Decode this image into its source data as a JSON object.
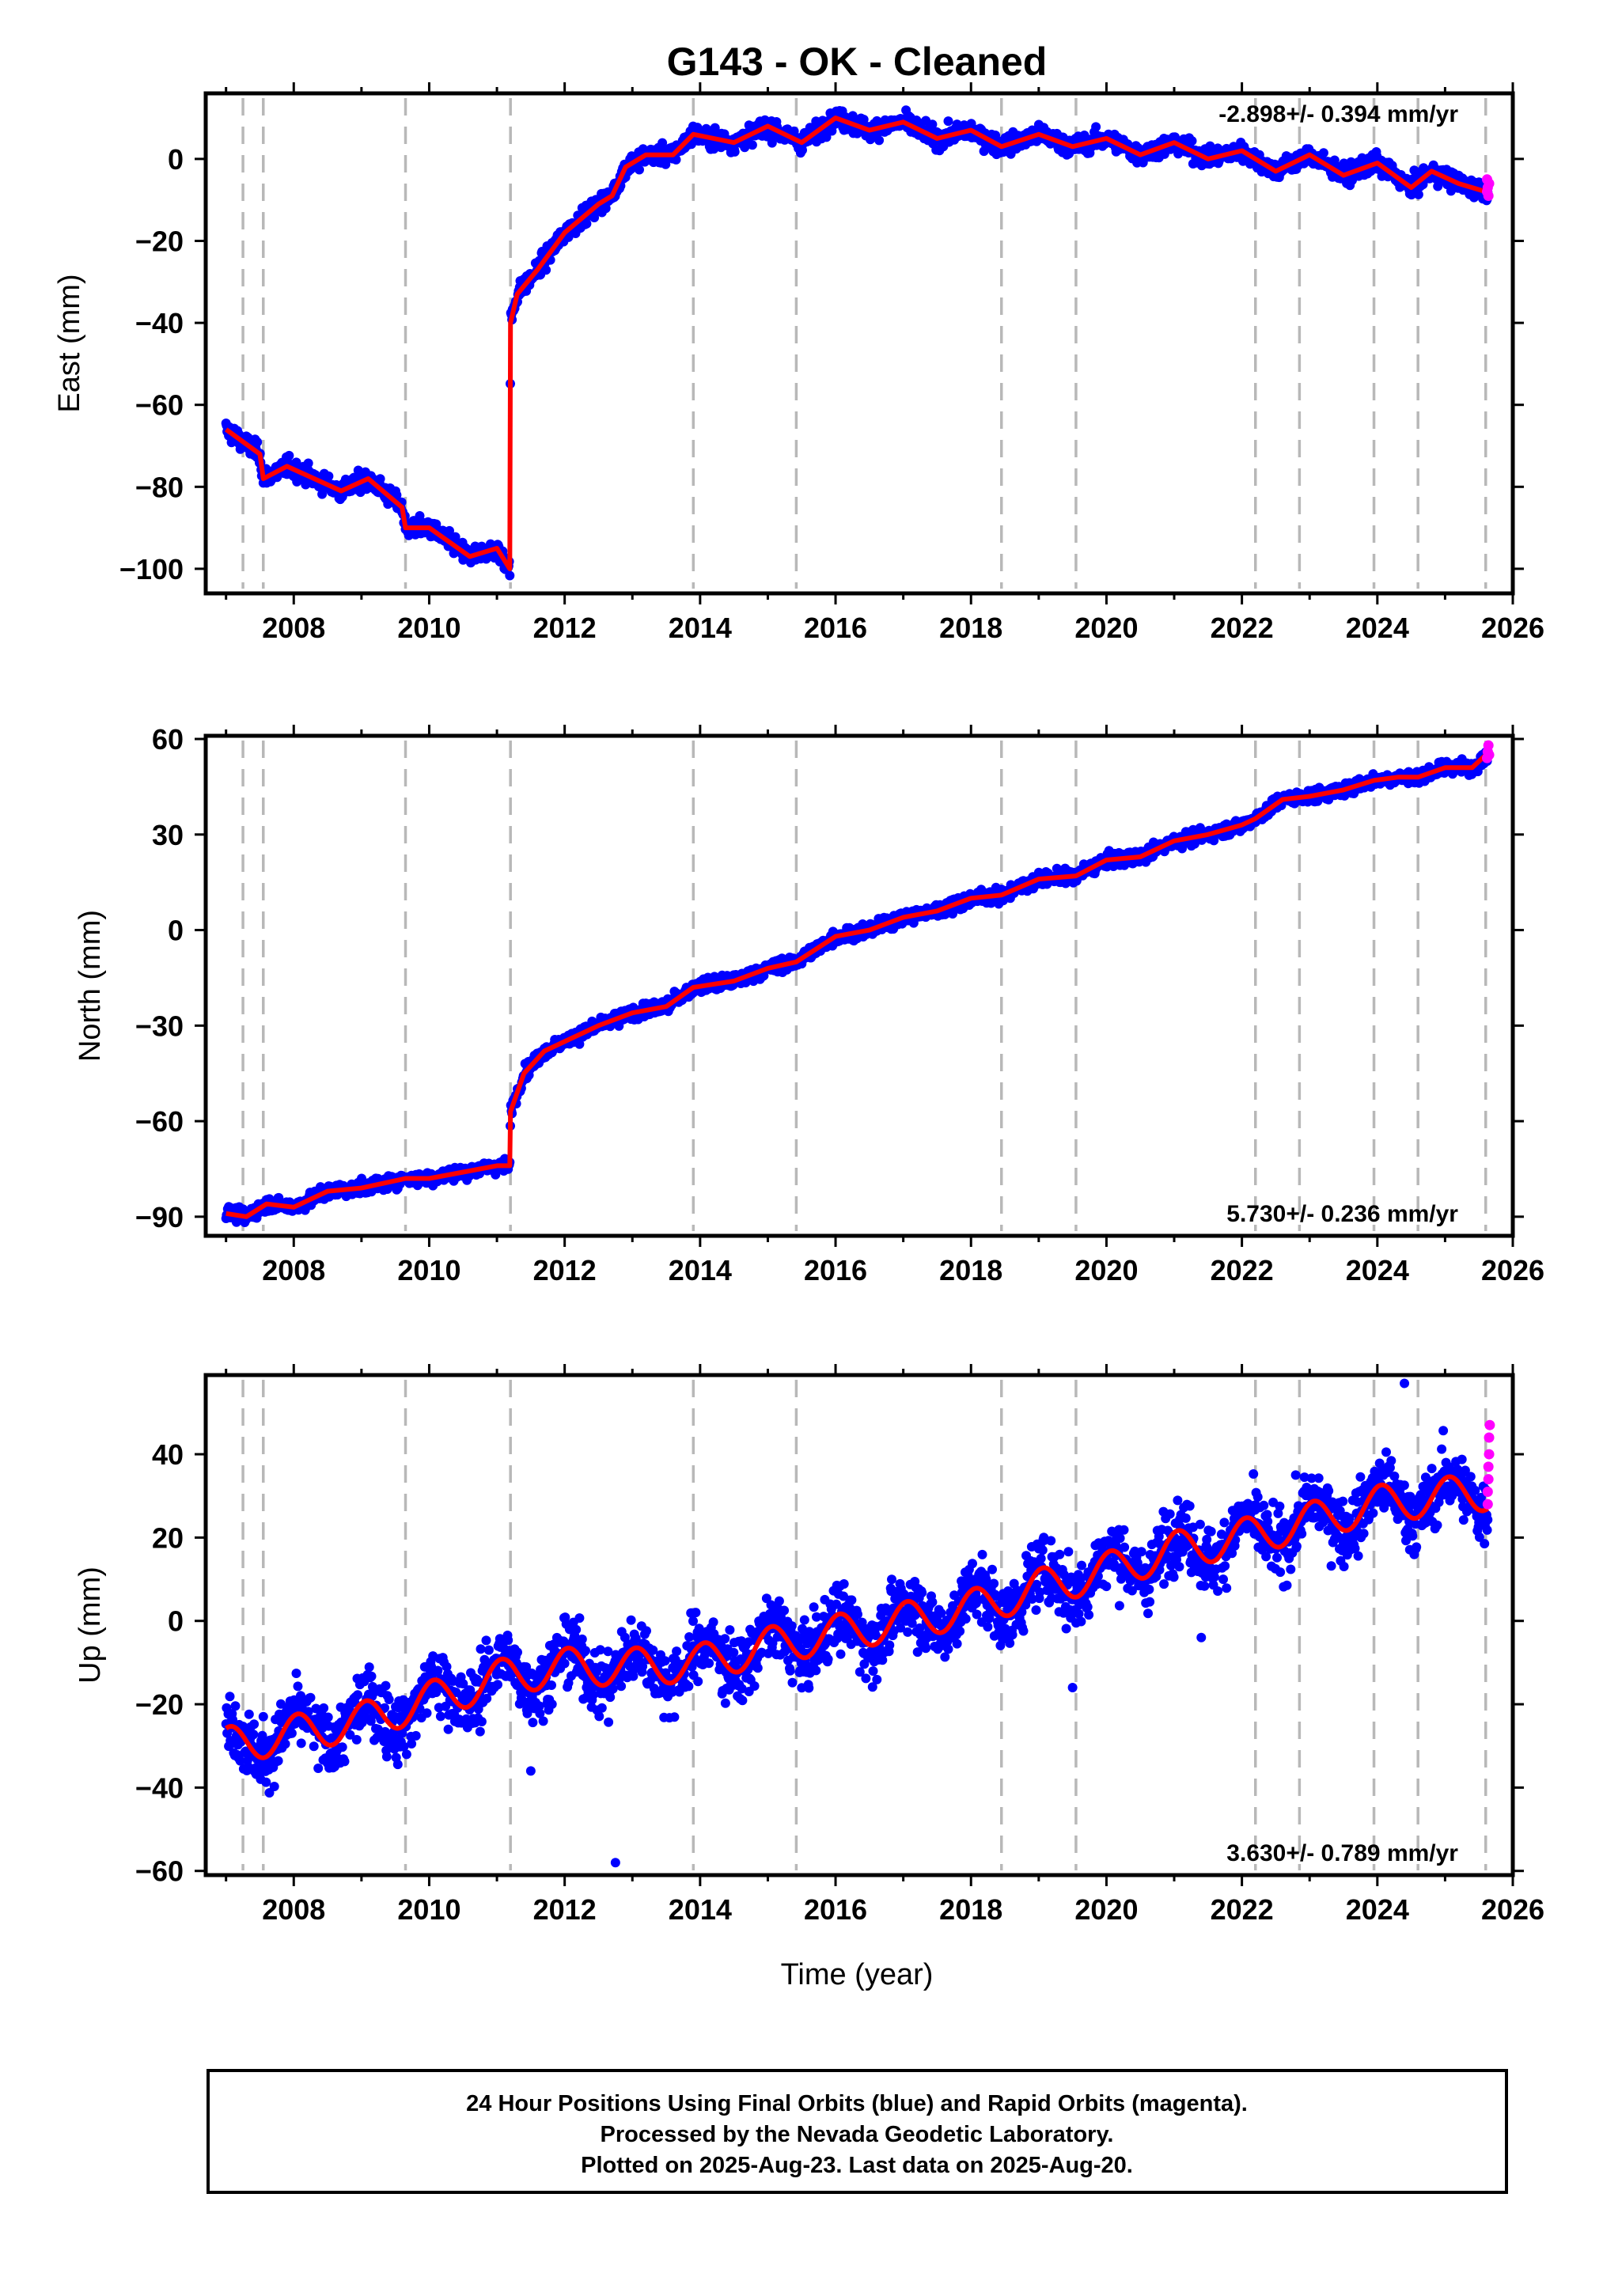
{
  "title": "G143  - OK - Cleaned",
  "footer": {
    "lines": [
      "24 Hour Positions Using Final Orbits (blue) and Rapid Orbits (magenta).",
      "Processed by the Nevada Geodetic Laboratory.",
      "Plotted on 2025-Aug-23. Last data on 2025-Aug-20."
    ]
  },
  "colors": {
    "final_orbits": "#0000ff",
    "rapid_orbits": "#ff00ff",
    "model": "#ff0000",
    "event_lines": "#b8b8b8"
  },
  "chart_data": [
    {
      "type": "scatter",
      "ylabel": "East (mm)",
      "xlim": [
        2006.7,
        2026.0
      ],
      "ylim": [
        -106,
        16
      ],
      "yticks": [
        0,
        -20,
        -40,
        -60,
        -80,
        -100
      ],
      "xticks": [
        2008,
        2010,
        2012,
        2014,
        2016,
        2018,
        2020,
        2022,
        2024,
        2026
      ],
      "rate_label": "-2.898+/- 0.394 mm/yr",
      "rate_position": "top-right",
      "event_lines": [
        2007.25,
        2007.55,
        2009.65,
        2011.2,
        2013.9,
        2015.42,
        2018.45,
        2019.55,
        2022.2,
        2022.85,
        2023.95,
        2024.6,
        2025.6
      ],
      "data_range": [
        2007.0,
        2025.63
      ],
      "series": [
        {
          "name": "Final Orbits (blue)",
          "model": [
            [
              2007.0,
              -66
            ],
            [
              2007.5,
              -72
            ],
            [
              2007.55,
              -78
            ],
            [
              2007.9,
              -75
            ],
            [
              2008.7,
              -81
            ],
            [
              2009.1,
              -78
            ],
            [
              2009.6,
              -85
            ],
            [
              2009.65,
              -90
            ],
            [
              2010.0,
              -90
            ],
            [
              2010.6,
              -97
            ],
            [
              2011.0,
              -95
            ],
            [
              2011.19,
              -100
            ],
            [
              2011.2,
              -40
            ],
            [
              2011.3,
              -33
            ],
            [
              2011.6,
              -27
            ],
            [
              2012.0,
              -18
            ],
            [
              2012.5,
              -11
            ],
            [
              2012.7,
              -9
            ],
            [
              2012.9,
              -2
            ],
            [
              2013.2,
              1
            ],
            [
              2013.6,
              1
            ],
            [
              2013.9,
              6
            ],
            [
              2014.5,
              4
            ],
            [
              2015.0,
              8
            ],
            [
              2015.5,
              4
            ],
            [
              2016.0,
              10
            ],
            [
              2016.5,
              7
            ],
            [
              2017.0,
              9
            ],
            [
              2017.5,
              5
            ],
            [
              2018.0,
              7
            ],
            [
              2018.45,
              3
            ],
            [
              2019.0,
              6
            ],
            [
              2019.5,
              3
            ],
            [
              2020.0,
              5
            ],
            [
              2020.5,
              1
            ],
            [
              2021.0,
              4
            ],
            [
              2021.5,
              0
            ],
            [
              2022.0,
              2
            ],
            [
              2022.5,
              -3
            ],
            [
              2023.0,
              1
            ],
            [
              2023.5,
              -4
            ],
            [
              2024.0,
              -1
            ],
            [
              2024.5,
              -7
            ],
            [
              2024.8,
              -3
            ],
            [
              2025.2,
              -6
            ],
            [
              2025.6,
              -8
            ]
          ],
          "noise": 1.6
        },
        {
          "name": "Rapid Orbits (magenta)",
          "points": [
            [
              2025.62,
              -5
            ],
            [
              2025.63,
              -7
            ],
            [
              2025.64,
              -9
            ],
            [
              2025.65,
              -6
            ],
            [
              2025.62,
              -8
            ]
          ]
        }
      ]
    },
    {
      "type": "scatter",
      "ylabel": "North (mm)",
      "xlim": [
        2006.7,
        2026.0
      ],
      "ylim": [
        -96,
        61
      ],
      "yticks": [
        60,
        30,
        0,
        -30,
        -60,
        -90
      ],
      "xticks": [
        2008,
        2010,
        2012,
        2014,
        2016,
        2018,
        2020,
        2022,
        2024,
        2026
      ],
      "rate_label": "5.730+/- 0.236 mm/yr",
      "rate_position": "bottom-right",
      "event_lines": [
        2007.25,
        2007.55,
        2009.65,
        2011.2,
        2013.9,
        2015.42,
        2018.45,
        2019.55,
        2022.2,
        2022.85,
        2023.95,
        2024.6,
        2025.6
      ],
      "data_range": [
        2007.0,
        2025.63
      ],
      "series": [
        {
          "name": "Final Orbits (blue)",
          "model": [
            [
              2007.0,
              -89
            ],
            [
              2007.3,
              -90
            ],
            [
              2007.6,
              -86
            ],
            [
              2008.0,
              -87
            ],
            [
              2008.5,
              -82
            ],
            [
              2009.0,
              -81
            ],
            [
              2009.65,
              -78
            ],
            [
              2010.0,
              -78
            ],
            [
              2010.5,
              -76
            ],
            [
              2011.0,
              -74
            ],
            [
              2011.19,
              -74
            ],
            [
              2011.2,
              -57
            ],
            [
              2011.4,
              -45
            ],
            [
              2011.7,
              -38
            ],
            [
              2012.0,
              -35
            ],
            [
              2012.5,
              -30
            ],
            [
              2013.0,
              -26
            ],
            [
              2013.5,
              -24
            ],
            [
              2013.9,
              -18
            ],
            [
              2014.5,
              -16
            ],
            [
              2015.0,
              -12
            ],
            [
              2015.42,
              -10
            ],
            [
              2016.0,
              -2
            ],
            [
              2016.5,
              0
            ],
            [
              2017.0,
              4
            ],
            [
              2017.5,
              6
            ],
            [
              2018.0,
              10
            ],
            [
              2018.45,
              11
            ],
            [
              2019.0,
              16
            ],
            [
              2019.55,
              17
            ],
            [
              2020.0,
              22
            ],
            [
              2020.5,
              23
            ],
            [
              2021.0,
              28
            ],
            [
              2021.5,
              30
            ],
            [
              2022.0,
              33
            ],
            [
              2022.2,
              35
            ],
            [
              2022.6,
              41
            ],
            [
              2023.0,
              42
            ],
            [
              2023.5,
              44
            ],
            [
              2023.95,
              47
            ],
            [
              2024.3,
              48
            ],
            [
              2024.6,
              48
            ],
            [
              2025.0,
              51
            ],
            [
              2025.4,
              51
            ],
            [
              2025.6,
              55
            ]
          ],
          "noise": 1.5
        },
        {
          "name": "Rapid Orbits (magenta)",
          "points": [
            [
              2025.62,
              54
            ],
            [
              2025.63,
              56
            ],
            [
              2025.64,
              58
            ],
            [
              2025.65,
              55
            ]
          ]
        }
      ]
    },
    {
      "type": "scatter",
      "ylabel": "Up (mm)",
      "xlabel": "Time (year)",
      "xlim": [
        2006.7,
        2026.0
      ],
      "ylim": [
        -61,
        59
      ],
      "yticks": [
        40,
        20,
        0,
        -20,
        -40,
        -60
      ],
      "xticks": [
        2008,
        2010,
        2012,
        2014,
        2016,
        2018,
        2020,
        2022,
        2024,
        2026
      ],
      "rate_label": "3.630+/- 0.789 mm/yr",
      "rate_position": "bottom-right",
      "event_lines": [
        2007.25,
        2007.55,
        2009.65,
        2011.2,
        2013.9,
        2015.42,
        2018.45,
        2019.55,
        2022.2,
        2022.85,
        2023.95,
        2024.6,
        2025.6
      ],
      "data_range": [
        2007.0,
        2025.63
      ],
      "series": [
        {
          "name": "Final Orbits (blue)",
          "model": [
            [
              2007.0,
              -30
            ],
            [
              2008.0,
              -27
            ],
            [
              2009.0,
              -24
            ],
            [
              2010.0,
              -19
            ],
            [
              2011.2,
              -13
            ],
            [
              2012.0,
              -11
            ],
            [
              2013.0,
              -11
            ],
            [
              2014.0,
              -10
            ],
            [
              2015.0,
              -6
            ],
            [
              2016.0,
              -3
            ],
            [
              2017.0,
              0
            ],
            [
              2018.0,
              3
            ],
            [
              2019.0,
              8
            ],
            [
              2020.0,
              12
            ],
            [
              2021.0,
              17
            ],
            [
              2022.0,
              20
            ],
            [
              2023.0,
              24
            ],
            [
              2024.0,
              28
            ],
            [
              2025.0,
              30
            ],
            [
              2025.6,
              31
            ]
          ],
          "seasonal_amplitude": 4.5,
          "noise": 5.5,
          "outliers": [
            [
              2012.75,
              -58
            ],
            [
              2024.4,
              57
            ],
            [
              2011.5,
              -36
            ],
            [
              2021.4,
              -4
            ],
            [
              2019.5,
              -16
            ]
          ]
        },
        {
          "name": "Rapid Orbits (magenta)",
          "points": [
            [
              2025.63,
              28
            ],
            [
              2025.63,
              31
            ],
            [
              2025.64,
              34
            ],
            [
              2025.64,
              37
            ],
            [
              2025.65,
              40
            ],
            [
              2025.65,
              44
            ],
            [
              2025.66,
              47
            ]
          ]
        }
      ]
    }
  ]
}
